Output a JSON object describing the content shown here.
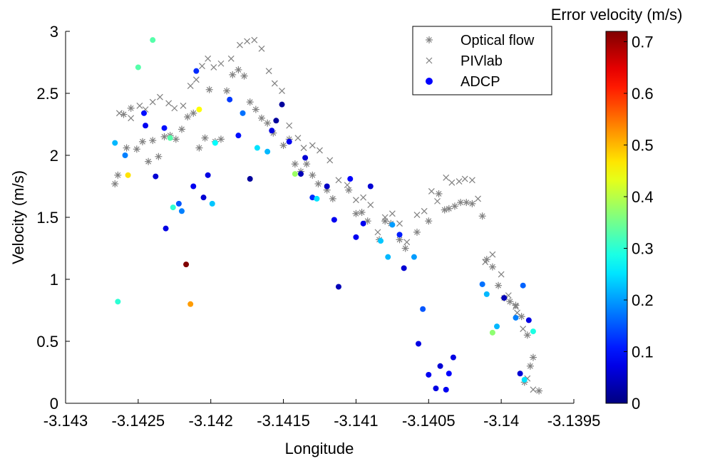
{
  "chart_data": {
    "type": "scatter",
    "xlabel": "Longitude",
    "ylabel": "Velocity (m/s)",
    "xlim": [
      -3.143,
      -3.1395
    ],
    "ylim": [
      0,
      3
    ],
    "xticks": [
      -3.143,
      -3.1425,
      -3.142,
      -3.1415,
      -3.141,
      -3.1405,
      -3.14,
      -3.1395
    ],
    "xtick_labels": [
      "-3.143",
      "-3.1425",
      "-3.142",
      "-3.1415",
      "-3.141",
      "-3.1405",
      "-3.14",
      "-3.1395"
    ],
    "yticks": [
      0,
      0.5,
      1,
      1.5,
      2,
      2.5,
      3
    ],
    "ytick_labels": [
      "0",
      "0.5",
      "1",
      "1.5",
      "2",
      "2.5",
      "3"
    ],
    "grid": false,
    "legend_position": "top-right",
    "colorbar": {
      "label": "Error velocity (m/s)",
      "range": [
        0,
        0.72
      ],
      "ticks": [
        0,
        0.1,
        0.2,
        0.3,
        0.4,
        0.5,
        0.6,
        0.7
      ],
      "tick_labels": [
        "0",
        "0.1",
        "0.2",
        "0.3",
        "0.4",
        "0.5",
        "0.6",
        "0.7"
      ],
      "colormap": "jet"
    },
    "series": [
      {
        "name": "Optical flow",
        "marker": "asterisk",
        "color": "#808080",
        "points": [
          [
            -3.14266,
            1.77
          ],
          [
            -3.14264,
            1.84
          ],
          [
            -3.1426,
            2.33
          ],
          [
            -3.14258,
            2.06
          ],
          [
            -3.14255,
            2.38
          ],
          [
            -3.14251,
            2.05
          ],
          [
            -3.14247,
            2.11
          ],
          [
            -3.14243,
            1.95
          ],
          [
            -3.1424,
            2.12
          ],
          [
            -3.14236,
            1.99
          ],
          [
            -3.14232,
            2.15
          ],
          [
            -3.14228,
            2.16
          ],
          [
            -3.14224,
            2.13
          ],
          [
            -3.1422,
            2.21
          ],
          [
            -3.14216,
            2.31
          ],
          [
            -3.14212,
            2.34
          ],
          [
            -3.14208,
            2.06
          ],
          [
            -3.14204,
            2.14
          ],
          [
            -3.14201,
            2.53
          ],
          [
            -3.14197,
            2.11
          ],
          [
            -3.14193,
            2.13
          ],
          [
            -3.14189,
            2.52
          ],
          [
            -3.14185,
            2.65
          ],
          [
            -3.14181,
            2.69
          ],
          [
            -3.14177,
            2.64
          ],
          [
            -3.14173,
            2.43
          ],
          [
            -3.14169,
            2.37
          ],
          [
            -3.14165,
            2.3
          ],
          [
            -3.14161,
            2.26
          ],
          [
            -3.14157,
            2.18
          ],
          [
            -3.1415,
            2.08
          ],
          [
            -3.14146,
            2.13
          ],
          [
            -3.14142,
            1.93
          ],
          [
            -3.14138,
            1.87
          ],
          [
            -3.14134,
            1.93
          ],
          [
            -3.1413,
            1.84
          ],
          [
            -3.14126,
            1.77
          ],
          [
            -3.1412,
            1.72
          ],
          [
            -3.14116,
            1.65
          ],
          [
            -3.14105,
            1.72
          ],
          [
            -3.141,
            1.53
          ],
          [
            -3.14096,
            1.54
          ],
          [
            -3.14092,
            1.47
          ],
          [
            -3.14084,
            1.32
          ],
          [
            -3.1408,
            1.47
          ],
          [
            -3.14076,
            1.45
          ],
          [
            -3.1407,
            1.32
          ],
          [
            -3.14066,
            1.25
          ],
          [
            -3.14058,
            1.38
          ],
          [
            -3.1405,
            1.47
          ],
          [
            -3.14043,
            1.69
          ],
          [
            -3.14039,
            1.56
          ],
          [
            -3.14036,
            1.57
          ],
          [
            -3.14032,
            1.59
          ],
          [
            -3.14028,
            1.62
          ],
          [
            -3.14024,
            1.62
          ],
          [
            -3.1402,
            1.61
          ],
          [
            -3.14013,
            1.51
          ],
          [
            -3.1401,
            1.16
          ],
          [
            -3.14006,
            1.1
          ],
          [
            -3.14002,
            0.95
          ],
          [
            -3.13998,
            0.85
          ],
          [
            -3.13994,
            0.82
          ],
          [
            -3.1399,
            0.79
          ],
          [
            -3.13986,
            0.7
          ],
          [
            -3.13982,
            0.55
          ],
          [
            -3.13978,
            0.37
          ],
          [
            -3.13974,
            0.1
          ],
          [
            -3.13984,
            0.17
          ],
          [
            -3.1398,
            0.3
          ]
        ]
      },
      {
        "name": "PIVlab",
        "marker": "cross",
        "color": "#808080",
        "points": [
          [
            -3.14263,
            2.34
          ],
          [
            -3.14255,
            2.3
          ],
          [
            -3.14249,
            2.4
          ],
          [
            -3.14245,
            2.37
          ],
          [
            -3.1424,
            2.43
          ],
          [
            -3.14235,
            2.47
          ],
          [
            -3.14229,
            2.42
          ],
          [
            -3.14225,
            2.38
          ],
          [
            -3.14219,
            2.4
          ],
          [
            -3.14214,
            2.56
          ],
          [
            -3.1421,
            2.61
          ],
          [
            -3.14206,
            2.72
          ],
          [
            -3.14202,
            2.78
          ],
          [
            -3.14198,
            2.71
          ],
          [
            -3.14193,
            2.74
          ],
          [
            -3.14186,
            2.78
          ],
          [
            -3.1418,
            2.89
          ],
          [
            -3.14175,
            2.92
          ],
          [
            -3.1417,
            2.93
          ],
          [
            -3.14165,
            2.86
          ],
          [
            -3.1416,
            2.68
          ],
          [
            -3.14156,
            2.58
          ],
          [
            -3.14151,
            2.52
          ],
          [
            -3.14146,
            2.24
          ],
          [
            -3.1414,
            2.14
          ],
          [
            -3.14136,
            2.06
          ],
          [
            -3.1413,
            2.08
          ],
          [
            -3.14125,
            2.04
          ],
          [
            -3.14118,
            1.96
          ],
          [
            -3.14112,
            1.8
          ],
          [
            -3.14106,
            1.76
          ],
          [
            -3.141,
            1.64
          ],
          [
            -3.14095,
            1.66
          ],
          [
            -3.1409,
            1.6
          ],
          [
            -3.14085,
            1.38
          ],
          [
            -3.1408,
            1.5
          ],
          [
            -3.14075,
            1.53
          ],
          [
            -3.1407,
            1.45
          ],
          [
            -3.14065,
            1.3
          ],
          [
            -3.14058,
            1.52
          ],
          [
            -3.14053,
            1.55
          ],
          [
            -3.14048,
            1.71
          ],
          [
            -3.14044,
            1.63
          ],
          [
            -3.14038,
            1.82
          ],
          [
            -3.14034,
            1.78
          ],
          [
            -3.14029,
            1.79
          ],
          [
            -3.14025,
            1.81
          ],
          [
            -3.1402,
            1.8
          ],
          [
            -3.14016,
            1.65
          ],
          [
            -3.14011,
            1.14
          ],
          [
            -3.14006,
            1.2
          ],
          [
            -3.14,
            1.04
          ],
          [
            -3.13995,
            0.87
          ],
          [
            -3.13989,
            0.73
          ],
          [
            -3.13985,
            0.6
          ],
          [
            -3.13982,
            0.2
          ],
          [
            -3.13978,
            0.11
          ],
          [
            -3.1399,
            0.78
          ]
        ]
      },
      {
        "name": "ADCP",
        "marker": "dot",
        "points": [
          [
            -3.14266,
            2.1,
            0.22
          ],
          [
            -3.14264,
            0.82,
            0.3
          ],
          [
            -3.14259,
            2.0,
            0.18
          ],
          [
            -3.14257,
            1.84,
            0.47
          ],
          [
            -3.1425,
            2.71,
            0.33
          ],
          [
            -3.14246,
            2.34,
            0.1
          ],
          [
            -3.14245,
            2.24,
            0.08
          ],
          [
            -3.1424,
            2.93,
            0.33
          ],
          [
            -3.14238,
            1.83,
            0.06
          ],
          [
            -3.14232,
            2.22,
            0.1
          ],
          [
            -3.14231,
            1.41,
            0.07
          ],
          [
            -3.14228,
            2.14,
            0.33
          ],
          [
            -3.14226,
            1.58,
            0.3
          ],
          [
            -3.14222,
            1.61,
            0.15
          ],
          [
            -3.1422,
            1.55,
            0.18
          ],
          [
            -3.14217,
            1.12,
            0.72
          ],
          [
            -3.14214,
            0.8,
            0.52
          ],
          [
            -3.14212,
            1.75,
            0.08
          ],
          [
            -3.1421,
            2.68,
            0.12
          ],
          [
            -3.14208,
            2.37,
            0.45
          ],
          [
            -3.14205,
            1.66,
            0.06
          ],
          [
            -3.14202,
            1.84,
            0.07
          ],
          [
            -3.14199,
            1.61,
            0.23
          ],
          [
            -3.14197,
            2.1,
            0.27
          ],
          [
            -3.14187,
            2.45,
            0.13
          ],
          [
            -3.14181,
            2.16,
            0.1
          ],
          [
            -3.14178,
            2.34,
            0.17
          ],
          [
            -3.14173,
            1.81,
            0.02
          ],
          [
            -3.14168,
            2.06,
            0.25
          ],
          [
            -3.14161,
            2.03,
            0.22
          ],
          [
            -3.14158,
            2.2,
            0.07
          ],
          [
            -3.14155,
            2.28,
            0.02
          ],
          [
            -3.14151,
            2.41,
            0.02
          ],
          [
            -3.14146,
            2.11,
            0.08
          ],
          [
            -3.14142,
            1.85,
            0.38
          ],
          [
            -3.14138,
            1.85,
            0.04
          ],
          [
            -3.14135,
            1.98,
            0.06
          ],
          [
            -3.1413,
            1.66,
            0.12
          ],
          [
            -3.14127,
            1.65,
            0.25
          ],
          [
            -3.1412,
            1.75,
            0.05
          ],
          [
            -3.14115,
            1.48,
            0.08
          ],
          [
            -3.14112,
            0.94,
            0.04
          ],
          [
            -3.14104,
            1.81,
            0.09
          ],
          [
            -3.141,
            1.34,
            0.08
          ],
          [
            -3.14095,
            1.45,
            0.08
          ],
          [
            -3.1409,
            1.75,
            0.06
          ],
          [
            -3.14083,
            1.31,
            0.23
          ],
          [
            -3.14078,
            1.18,
            0.22
          ],
          [
            -3.14075,
            1.44,
            0.2
          ],
          [
            -3.1407,
            1.36,
            0.11
          ],
          [
            -3.14067,
            1.09,
            0.06
          ],
          [
            -3.1406,
            1.18,
            0.2
          ],
          [
            -3.14057,
            0.48,
            0.07
          ],
          [
            -3.14054,
            0.76,
            0.15
          ],
          [
            -3.1405,
            0.23,
            0.08
          ],
          [
            -3.14045,
            0.12,
            0.07
          ],
          [
            -3.14042,
            0.3,
            0.06
          ],
          [
            -3.14038,
            0.11,
            0.08
          ],
          [
            -3.14036,
            0.24,
            0.09
          ],
          [
            -3.14033,
            0.37,
            0.07
          ],
          [
            -3.14013,
            0.96,
            0.17
          ],
          [
            -3.1401,
            0.88,
            0.22
          ],
          [
            -3.14006,
            0.57,
            0.37
          ],
          [
            -3.14003,
            0.62,
            0.22
          ],
          [
            -3.13998,
            0.85,
            0.04
          ],
          [
            -3.1399,
            0.69,
            0.18
          ],
          [
            -3.13987,
            0.24,
            0.06
          ],
          [
            -3.13985,
            0.95,
            0.16
          ],
          [
            -3.13984,
            0.19,
            0.25
          ],
          [
            -3.13981,
            0.67,
            0.07
          ],
          [
            -3.13978,
            0.58,
            0.29
          ]
        ]
      }
    ]
  }
}
